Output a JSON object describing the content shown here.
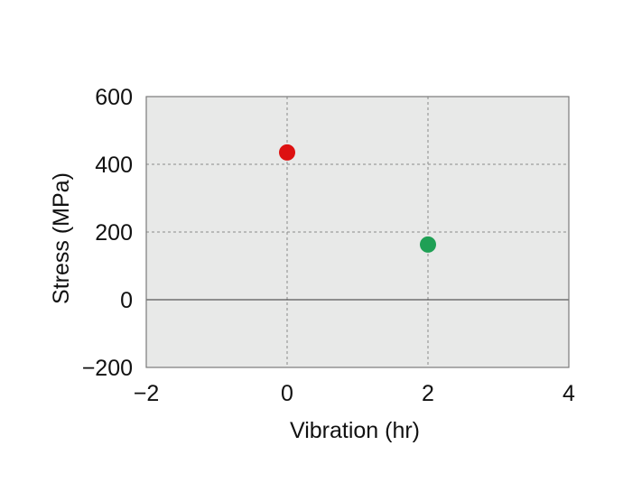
{
  "chart_data": {
    "type": "scatter",
    "title": "",
    "xlabel": "Vibration (hr)",
    "ylabel": "Stress (MPa)",
    "xlim": [
      -2,
      4
    ],
    "ylim": [
      -200,
      600
    ],
    "xticks": [
      -2,
      0,
      2,
      4
    ],
    "yticks": [
      -200,
      0,
      200,
      400,
      600
    ],
    "xtick_labels": [
      "−2",
      "0",
      "2",
      "4"
    ],
    "ytick_labels": [
      "−200",
      "0",
      "200",
      "400",
      "600"
    ],
    "grid": true,
    "legend": "none",
    "background_color": "#e8e9e8",
    "points": [
      {
        "x": 0,
        "y": 435,
        "color": "#dd1111"
      },
      {
        "x": 2,
        "y": 163,
        "color": "#1fa055"
      }
    ]
  }
}
